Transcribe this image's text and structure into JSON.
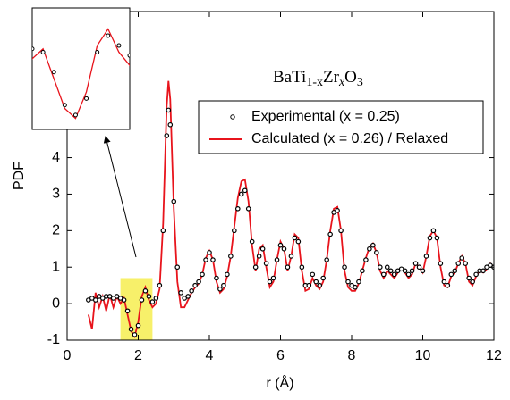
{
  "chart_data": {
    "type": "line",
    "x_label": "r (Å)",
    "y_label": "PDF",
    "annotation_parts": [
      "BaTi",
      "1-x",
      "Zr",
      "x",
      "O",
      "3"
    ],
    "xlim": [
      0,
      12
    ],
    "xticks": [
      0,
      2,
      4,
      6,
      8,
      10,
      12
    ],
    "ylim": [
      -1,
      8
    ],
    "yticks": [
      -1,
      0,
      1,
      2,
      3,
      4
    ],
    "inset": {
      "xlim": [
        1.5,
        2.4
      ],
      "ylim": [
        -1.0,
        0.7
      ],
      "highlight_color": "#f7f06a"
    },
    "x": [
      0.6,
      0.7,
      0.8,
      0.9,
      1.0,
      1.1,
      1.2,
      1.3,
      1.4,
      1.5,
      1.6,
      1.7,
      1.8,
      1.9,
      2.0,
      2.1,
      2.2,
      2.3,
      2.4,
      2.5,
      2.6,
      2.7,
      2.8,
      2.85,
      2.9,
      3.0,
      3.1,
      3.2,
      3.3,
      3.4,
      3.5,
      3.6,
      3.7,
      3.8,
      3.9,
      4.0,
      4.1,
      4.2,
      4.3,
      4.4,
      4.5,
      4.6,
      4.7,
      4.8,
      4.9,
      5.0,
      5.1,
      5.2,
      5.3,
      5.4,
      5.5,
      5.6,
      5.7,
      5.8,
      5.9,
      6.0,
      6.1,
      6.2,
      6.3,
      6.4,
      6.5,
      6.6,
      6.7,
      6.8,
      6.9,
      7.0,
      7.1,
      7.2,
      7.3,
      7.4,
      7.5,
      7.6,
      7.7,
      7.8,
      7.9,
      8.0,
      8.1,
      8.2,
      8.3,
      8.4,
      8.5,
      8.6,
      8.7,
      8.8,
      8.9,
      9.0,
      9.1,
      9.2,
      9.3,
      9.4,
      9.5,
      9.6,
      9.7,
      9.8,
      9.9,
      10.0,
      10.1,
      10.2,
      10.3,
      10.4,
      10.5,
      10.6,
      10.7,
      10.8,
      10.9,
      11.0,
      11.1,
      11.2,
      11.3,
      11.4,
      11.5,
      11.6,
      11.7,
      11.8,
      11.9,
      12.0
    ],
    "series": [
      {
        "name": "Experimental (x = 0.25)",
        "color": "#000000",
        "marker": "circle",
        "values": [
          0.1,
          0.15,
          0.1,
          0.2,
          0.15,
          0.2,
          0.2,
          0.15,
          0.2,
          0.15,
          0.1,
          -0.2,
          -0.7,
          -0.85,
          -0.6,
          0.1,
          0.35,
          0.2,
          0.05,
          0.15,
          0.5,
          2.0,
          4.6,
          5.3,
          4.9,
          2.8,
          1.0,
          0.3,
          0.15,
          0.2,
          0.35,
          0.5,
          0.6,
          0.8,
          1.2,
          1.4,
          1.2,
          0.7,
          0.4,
          0.5,
          0.8,
          1.3,
          2.0,
          2.6,
          3.0,
          3.1,
          2.6,
          1.7,
          1.0,
          1.3,
          1.5,
          1.1,
          0.6,
          0.7,
          1.2,
          1.6,
          1.5,
          1.0,
          1.3,
          1.8,
          1.7,
          1.0,
          0.5,
          0.5,
          0.8,
          0.6,
          0.5,
          0.7,
          1.2,
          1.9,
          2.5,
          2.55,
          2.0,
          1.0,
          0.6,
          0.5,
          0.45,
          0.6,
          0.9,
          1.2,
          1.5,
          1.6,
          1.4,
          1.0,
          0.8,
          1.0,
          0.9,
          0.8,
          0.9,
          0.95,
          0.9,
          0.8,
          0.9,
          1.1,
          1.0,
          0.9,
          1.3,
          1.8,
          2.0,
          1.8,
          1.1,
          0.6,
          0.5,
          0.8,
          0.9,
          1.1,
          1.25,
          1.1,
          0.7,
          0.6,
          0.8,
          0.9,
          0.9,
          1.0,
          1.05,
          1.0
        ]
      },
      {
        "name": "Calculated (x = 0.26) / Relaxed",
        "color": "#e8141c",
        "marker": "line",
        "values": [
          -0.3,
          -0.7,
          0.3,
          -0.1,
          0.2,
          -0.2,
          0.25,
          -0.1,
          0.2,
          0.0,
          0.15,
          -0.3,
          -0.75,
          -0.9,
          -0.5,
          0.2,
          0.45,
          0.1,
          -0.1,
          0.0,
          0.4,
          2.2,
          5.4,
          6.1,
          5.6,
          2.6,
          0.6,
          -0.1,
          -0.1,
          0.1,
          0.3,
          0.45,
          0.55,
          0.8,
          1.25,
          1.45,
          1.2,
          0.6,
          0.3,
          0.4,
          0.75,
          1.3,
          2.1,
          2.9,
          3.35,
          3.4,
          2.8,
          1.6,
          0.9,
          1.5,
          1.6,
          1.0,
          0.45,
          0.6,
          1.2,
          1.7,
          1.5,
          0.9,
          1.3,
          1.9,
          1.8,
          0.9,
          0.35,
          0.4,
          0.7,
          0.5,
          0.4,
          0.6,
          1.2,
          2.0,
          2.6,
          2.65,
          2.0,
          0.9,
          0.45,
          0.35,
          0.35,
          0.55,
          0.9,
          1.25,
          1.55,
          1.65,
          1.4,
          0.9,
          0.7,
          0.9,
          0.8,
          0.7,
          0.85,
          0.95,
          0.85,
          0.7,
          0.8,
          1.1,
          1.0,
          0.85,
          1.3,
          1.85,
          2.0,
          1.8,
          1.0,
          0.5,
          0.45,
          0.75,
          0.85,
          1.1,
          1.3,
          1.1,
          0.6,
          0.5,
          0.75,
          0.9,
          0.85,
          0.95,
          1.1,
          1.0
        ]
      }
    ]
  }
}
